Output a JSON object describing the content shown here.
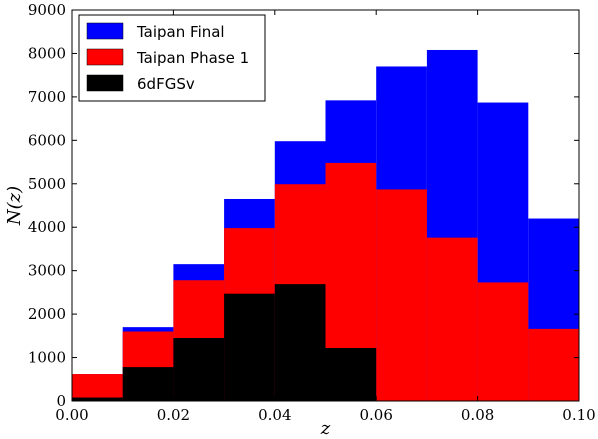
{
  "chart_data": {
    "type": "bar",
    "subtype": "overlaid-histogram",
    "title": "",
    "xlabel": "z",
    "ylabel": "N(z)",
    "xlim": [
      0.0,
      0.1
    ],
    "ylim": [
      0,
      9000
    ],
    "xticks": [
      "0.00",
      "0.02",
      "0.04",
      "0.06",
      "0.08",
      "0.10"
    ],
    "yticks": [
      "0",
      "1000",
      "2000",
      "3000",
      "4000",
      "5000",
      "6000",
      "7000",
      "8000",
      "9000"
    ],
    "bin_edges": [
      0.0,
      0.01,
      0.02,
      0.03,
      0.04,
      0.05,
      0.06,
      0.07,
      0.08,
      0.09,
      0.1
    ],
    "legend_position": "top-left",
    "grid": false,
    "series": [
      {
        "name": "Taipan Final",
        "color": "#0000ff",
        "values": [
          620,
          1700,
          3150,
          4650,
          5980,
          6920,
          7700,
          8080,
          6870,
          4200
        ]
      },
      {
        "name": "Taipan Phase 1",
        "color": "#ff0000",
        "values": [
          620,
          1600,
          2780,
          3980,
          4990,
          5480,
          4870,
          3760,
          2730,
          1660
        ]
      },
      {
        "name": "6dFGSv",
        "color": "#000000",
        "values": [
          80,
          780,
          1450,
          2470,
          2690,
          1220,
          0,
          0,
          0,
          0
        ]
      }
    ]
  }
}
